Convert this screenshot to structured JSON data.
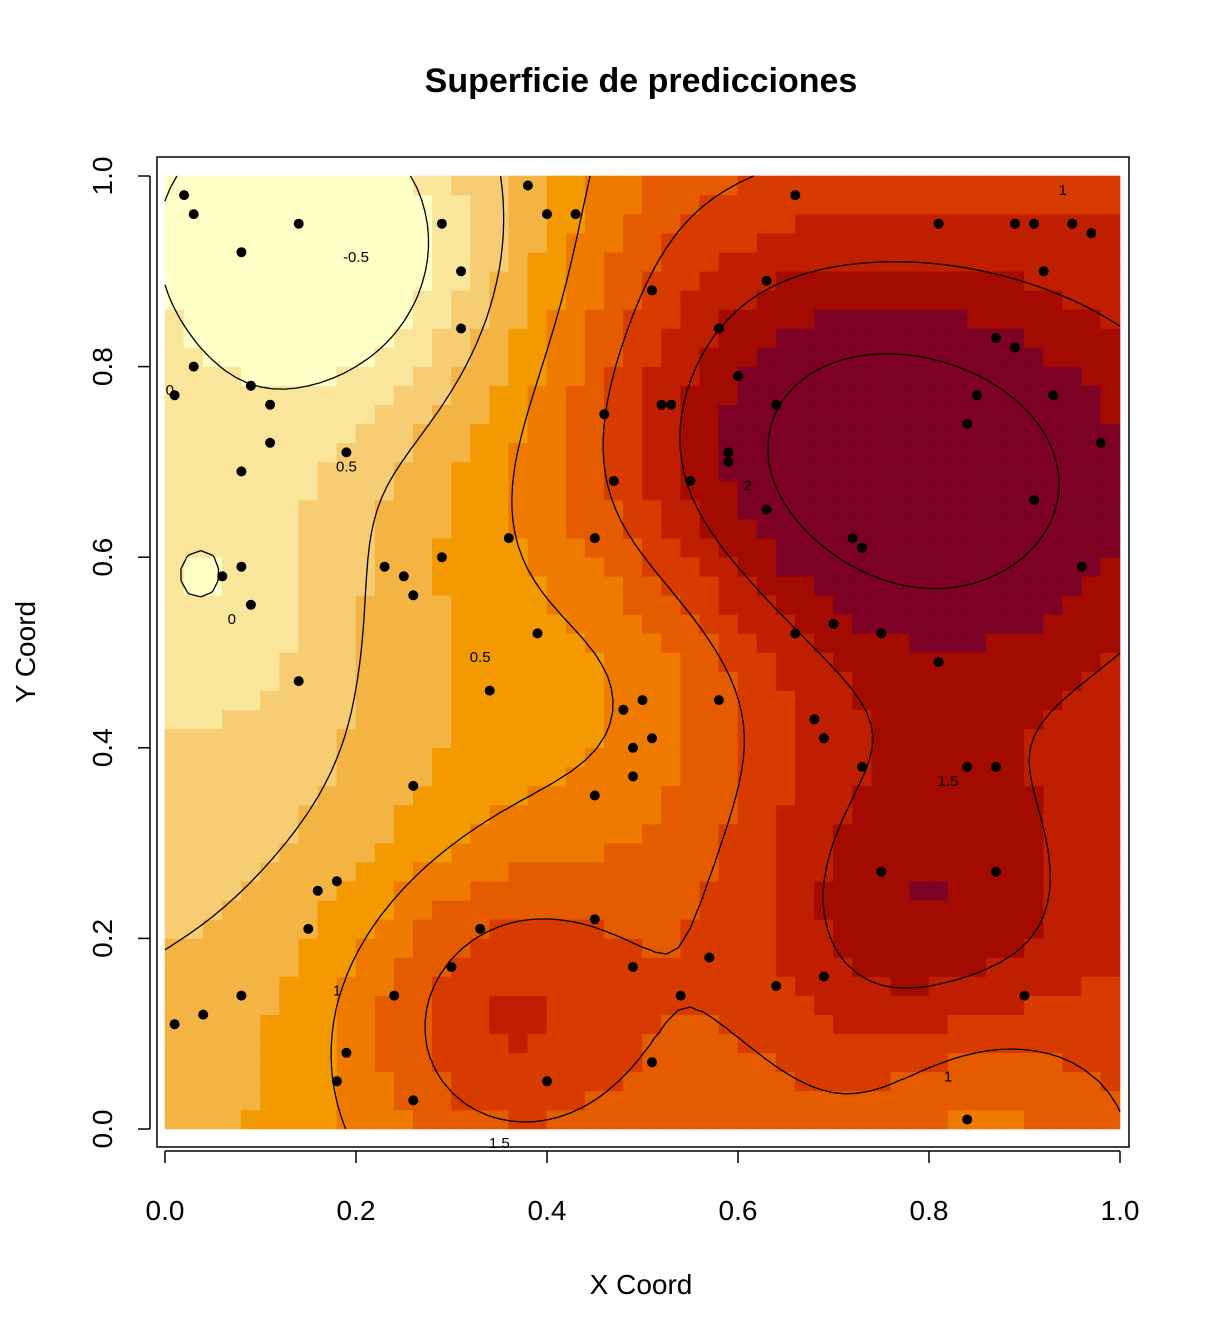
{
  "chart_data": {
    "type": "heatmap",
    "title": "Superficie de predicciones",
    "xlabel": "X Coord",
    "ylabel": "Y Coord",
    "xlim": [
      0.0,
      1.0
    ],
    "ylim": [
      0.0,
      1.0
    ],
    "x_ticks": [
      "0.0",
      "0.2",
      "0.4",
      "0.6",
      "0.8",
      "1.0"
    ],
    "y_ticks": [
      "0.0",
      "0.2",
      "0.4",
      "0.6",
      "0.8",
      "1.0"
    ],
    "grid": false,
    "legend": "none",
    "palette": [
      "#FFFFC8",
      "#FAE69A",
      "#F7CD74",
      "#F4B444",
      "#F39A02",
      "#EE7B00",
      "#E55B00",
      "#D83B00",
      "#BF1E00",
      "#A30A00",
      "#7D0025"
    ],
    "contour_labels": [
      "-0.5",
      "0",
      "0.5",
      "1",
      "1.5",
      "2"
    ],
    "points": [
      [
        0.02,
        0.98
      ],
      [
        0.03,
        0.96
      ],
      [
        0.08,
        0.92
      ],
      [
        0.14,
        0.95
      ],
      [
        0.29,
        0.95
      ],
      [
        0.31,
        0.9
      ],
      [
        0.38,
        0.99
      ],
      [
        0.4,
        0.96
      ],
      [
        0.43,
        0.96
      ],
      [
        0.03,
        0.8
      ],
      [
        0.01,
        0.77
      ],
      [
        0.09,
        0.78
      ],
      [
        0.11,
        0.76
      ],
      [
        0.31,
        0.84
      ],
      [
        0.11,
        0.72
      ],
      [
        0.08,
        0.69
      ],
      [
        0.19,
        0.71
      ],
      [
        0.06,
        0.58
      ],
      [
        0.08,
        0.59
      ],
      [
        0.09,
        0.55
      ],
      [
        0.23,
        0.59
      ],
      [
        0.25,
        0.58
      ],
      [
        0.26,
        0.56
      ],
      [
        0.29,
        0.6
      ],
      [
        0.36,
        0.62
      ],
      [
        0.39,
        0.52
      ],
      [
        0.14,
        0.47
      ],
      [
        0.34,
        0.46
      ],
      [
        0.45,
        0.62
      ],
      [
        0.46,
        0.75
      ],
      [
        0.47,
        0.68
      ],
      [
        0.51,
        0.88
      ],
      [
        0.52,
        0.76
      ],
      [
        0.53,
        0.76
      ],
      [
        0.55,
        0.68
      ],
      [
        0.58,
        0.84
      ],
      [
        0.59,
        0.7
      ],
      [
        0.59,
        0.71
      ],
      [
        0.6,
        0.79
      ],
      [
        0.63,
        0.65
      ],
      [
        0.64,
        0.76
      ],
      [
        0.63,
        0.89
      ],
      [
        0.66,
        0.98
      ],
      [
        0.81,
        0.95
      ],
      [
        0.89,
        0.95
      ],
      [
        0.91,
        0.95
      ],
      [
        0.95,
        0.95
      ],
      [
        0.97,
        0.94
      ],
      [
        0.92,
        0.9
      ],
      [
        0.87,
        0.83
      ],
      [
        0.89,
        0.82
      ],
      [
        0.93,
        0.77
      ],
      [
        0.85,
        0.77
      ],
      [
        0.84,
        0.74
      ],
      [
        0.98,
        0.72
      ],
      [
        0.91,
        0.66
      ],
      [
        0.96,
        0.59
      ],
      [
        0.72,
        0.62
      ],
      [
        0.73,
        0.61
      ],
      [
        0.66,
        0.52
      ],
      [
        0.7,
        0.53
      ],
      [
        0.75,
        0.52
      ],
      [
        0.81,
        0.49
      ],
      [
        0.48,
        0.44
      ],
      [
        0.5,
        0.45
      ],
      [
        0.51,
        0.41
      ],
      [
        0.58,
        0.45
      ],
      [
        0.49,
        0.4
      ],
      [
        0.49,
        0.37
      ],
      [
        0.45,
        0.35
      ],
      [
        0.68,
        0.43
      ],
      [
        0.69,
        0.41
      ],
      [
        0.73,
        0.38
      ],
      [
        0.84,
        0.38
      ],
      [
        0.87,
        0.38
      ],
      [
        0.26,
        0.36
      ],
      [
        0.16,
        0.25
      ],
      [
        0.18,
        0.26
      ],
      [
        0.15,
        0.21
      ],
      [
        0.33,
        0.21
      ],
      [
        0.45,
        0.22
      ],
      [
        0.75,
        0.27
      ],
      [
        0.87,
        0.27
      ],
      [
        0.08,
        0.14
      ],
      [
        0.04,
        0.12
      ],
      [
        0.01,
        0.11
      ],
      [
        0.24,
        0.14
      ],
      [
        0.3,
        0.17
      ],
      [
        0.49,
        0.17
      ],
      [
        0.54,
        0.14
      ],
      [
        0.57,
        0.18
      ],
      [
        0.64,
        0.15
      ],
      [
        0.69,
        0.16
      ],
      [
        0.9,
        0.14
      ],
      [
        0.19,
        0.08
      ],
      [
        0.18,
        0.05
      ],
      [
        0.26,
        0.03
      ],
      [
        0.4,
        0.05
      ],
      [
        0.51,
        0.07
      ],
      [
        0.84,
        0.01
      ]
    ]
  }
}
